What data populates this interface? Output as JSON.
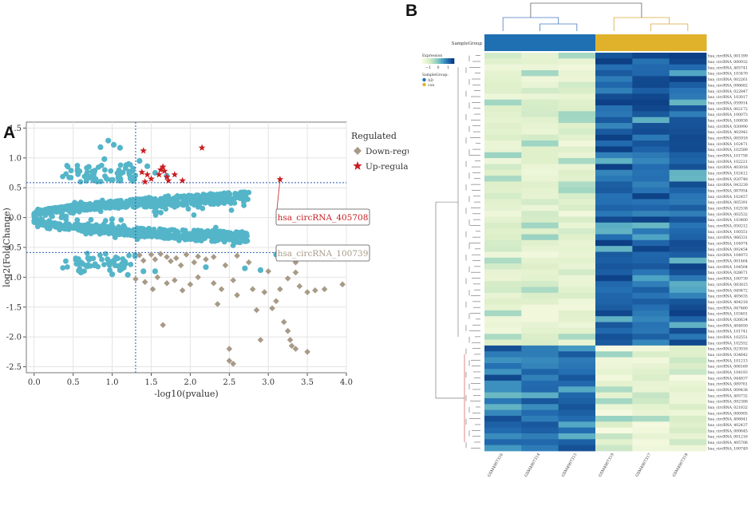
{
  "panel_a_letter": "A",
  "panel_b_letter": "B",
  "chart_data": [
    {
      "type": "scatter",
      "title": "",
      "xlabel": "-log10(pvalue)",
      "ylabel": "log2(FoldChange)",
      "xlim": [
        -0.1,
        4.0
      ],
      "ylim": [
        -2.6,
        1.6
      ],
      "x_ticks": [
        0.0,
        0.5,
        1.0,
        1.5,
        2.0,
        2.5,
        3.0,
        3.5,
        4.0
      ],
      "x_tick_labels": [
        "0.0",
        "0.5",
        "1.0",
        "1.5",
        "2.0",
        "2.5",
        "3.0",
        "3.5",
        "4.0"
      ],
      "y_ticks": [
        1.5,
        1.0,
        0.5,
        0.0,
        -0.5,
        -1.0,
        -1.5,
        -2.0,
        -2.5
      ],
      "y_tick_labels": [
        "1.5",
        "1.0",
        "0.5",
        "0.0",
        "-0.5",
        "-1.0",
        "-1.5",
        "-2.0",
        "-2.5"
      ],
      "grid": true,
      "threshold_lines": {
        "x": 1.3,
        "y_up": 0.585,
        "y_down": -0.585
      },
      "legend": {
        "title": "Regulated",
        "entries": [
          {
            "label": "Down-regulated",
            "color": "#a89a87",
            "marker": "diamond"
          },
          {
            "label": "Up-regulated",
            "color": "#c81e22",
            "marker": "star"
          }
        ]
      },
      "not_significant_color": "#54b5c9",
      "not_significant_outliers": [
        {
          "x": 0.85,
          "y": 1.18
        },
        {
          "x": 0.95,
          "y": 1.29
        },
        {
          "x": 1.02,
          "y": 1.22
        },
        {
          "x": 1.1,
          "y": 1.17
        },
        {
          "x": 0.7,
          "y": 0.85
        },
        {
          "x": 1.18,
          "y": 0.88
        },
        {
          "x": 1.22,
          "y": 0.73
        },
        {
          "x": 1.45,
          "y": 0.86
        },
        {
          "x": 1.55,
          "y": 0.75
        },
        {
          "x": 1.7,
          "y": 0.7
        },
        {
          "x": 0.9,
          "y": 0.98
        },
        {
          "x": 1.35,
          "y": 0.95
        },
        {
          "x": 0.6,
          "y": -0.92
        },
        {
          "x": 1.0,
          "y": -0.95
        },
        {
          "x": 1.1,
          "y": -0.88
        },
        {
          "x": 1.2,
          "y": -0.96
        },
        {
          "x": 1.4,
          "y": -0.9
        },
        {
          "x": 1.55,
          "y": -0.9
        },
        {
          "x": 2.2,
          "y": -0.83
        },
        {
          "x": 2.7,
          "y": -0.85
        },
        {
          "x": 2.9,
          "y": -0.88
        },
        {
          "x": 3.1,
          "y": -0.62
        }
      ],
      "series": [
        {
          "name": "Up-regulated",
          "points": [
            {
              "x": 1.4,
              "y": 1.12
            },
            {
              "x": 1.38,
              "y": 0.76
            },
            {
              "x": 1.45,
              "y": 0.72
            },
            {
              "x": 1.42,
              "y": 0.6
            },
            {
              "x": 1.5,
              "y": 0.65
            },
            {
              "x": 1.6,
              "y": 0.72
            },
            {
              "x": 1.62,
              "y": 0.8
            },
            {
              "x": 1.65,
              "y": 0.85
            },
            {
              "x": 1.67,
              "y": 0.78
            },
            {
              "x": 1.7,
              "y": 0.68
            },
            {
              "x": 1.72,
              "y": 0.62
            },
            {
              "x": 1.8,
              "y": 0.72
            },
            {
              "x": 1.9,
              "y": 0.62
            },
            {
              "x": 2.15,
              "y": 1.17
            },
            {
              "x": 3.15,
              "y": 0.64
            }
          ]
        },
        {
          "name": "Down-regulated",
          "points": [
            {
              "x": 1.35,
              "y": -0.63
            },
            {
              "x": 1.4,
              "y": -0.72
            },
            {
              "x": 1.5,
              "y": -0.62
            },
            {
              "x": 1.55,
              "y": -0.7
            },
            {
              "x": 1.62,
              "y": -0.61
            },
            {
              "x": 1.7,
              "y": -0.66
            },
            {
              "x": 1.75,
              "y": -0.73
            },
            {
              "x": 1.82,
              "y": -0.68
            },
            {
              "x": 1.88,
              "y": -0.8
            },
            {
              "x": 1.95,
              "y": -0.62
            },
            {
              "x": 2.05,
              "y": -0.75
            },
            {
              "x": 2.1,
              "y": -0.65
            },
            {
              "x": 2.2,
              "y": -0.7
            },
            {
              "x": 2.3,
              "y": -0.66
            },
            {
              "x": 2.45,
              "y": -0.8
            },
            {
              "x": 2.6,
              "y": -0.64
            },
            {
              "x": 2.75,
              "y": -0.75
            },
            {
              "x": 1.3,
              "y": -1.03
            },
            {
              "x": 1.42,
              "y": -1.08
            },
            {
              "x": 1.52,
              "y": -1.2
            },
            {
              "x": 1.58,
              "y": -1.0
            },
            {
              "x": 1.7,
              "y": -1.1
            },
            {
              "x": 1.8,
              "y": -1.05
            },
            {
              "x": 1.9,
              "y": -1.22
            },
            {
              "x": 2.0,
              "y": -1.12
            },
            {
              "x": 2.1,
              "y": -1.0
            },
            {
              "x": 2.3,
              "y": -1.1
            },
            {
              "x": 2.4,
              "y": -1.2
            },
            {
              "x": 2.55,
              "y": -1.05
            },
            {
              "x": 2.6,
              "y": -1.3
            },
            {
              "x": 2.8,
              "y": -1.2
            },
            {
              "x": 2.95,
              "y": -1.25
            },
            {
              "x": 3.05,
              "y": -1.52
            },
            {
              "x": 3.15,
              "y": -1.2
            },
            {
              "x": 3.25,
              "y": -1.02
            },
            {
              "x": 3.35,
              "y": -0.92
            },
            {
              "x": 3.4,
              "y": -1.15
            },
            {
              "x": 3.5,
              "y": -1.25
            },
            {
              "x": 3.6,
              "y": -1.22
            },
            {
              "x": 3.72,
              "y": -1.2
            },
            {
              "x": 3.95,
              "y": -1.12
            },
            {
              "x": 3.35,
              "y": -0.75
            },
            {
              "x": 1.65,
              "y": -1.8
            },
            {
              "x": 2.5,
              "y": -2.2
            },
            {
              "x": 2.5,
              "y": -2.4
            },
            {
              "x": 2.55,
              "y": -2.45
            },
            {
              "x": 2.9,
              "y": -2.05
            },
            {
              "x": 3.2,
              "y": -1.75
            },
            {
              "x": 3.25,
              "y": -1.9
            },
            {
              "x": 3.28,
              "y": -2.05
            },
            {
              "x": 3.3,
              "y": -2.15
            },
            {
              "x": 3.35,
              "y": -2.2
            },
            {
              "x": 3.5,
              "y": -2.25
            },
            {
              "x": 2.85,
              "y": -1.55
            },
            {
              "x": 2.35,
              "y": -1.45
            },
            {
              "x": 3.0,
              "y": -0.9
            },
            {
              "x": 3.1,
              "y": -1.4
            }
          ]
        }
      ],
      "annotations": [
        {
          "text": "hsa_circRNA_405708",
          "point": {
            "x": 3.15,
            "y": 0.64
          },
          "color": "#c81e22"
        },
        {
          "text": "hsa_circRNA_100739",
          "point": {
            "x": 2.95,
            "y": -0.4
          },
          "color": "#a89a87"
        }
      ]
    },
    {
      "type": "heatmap",
      "title": "",
      "column_annotation": {
        "label": "SampleGroup",
        "groups": [
          "AD",
          "AD",
          "AD",
          "con",
          "con",
          "con"
        ]
      },
      "colorbar": {
        "title": "Expression",
        "ticks": [
          "−1",
          "0",
          "1"
        ]
      },
      "sample_legend": {
        "title": "SampleGroup:",
        "entries": [
          {
            "label": "AD",
            "color": "#1f6fb3"
          },
          {
            "label": "con",
            "color": "#e0b22c"
          }
        ]
      },
      "columns": [
        "GSM4907316",
        "GSM4907314",
        "GSM4907315",
        "GSM4907319",
        "GSM4907317",
        "GSM4907318"
      ],
      "rows": [
        "hsa_circRNA_001399",
        "hsa_circRNA_000932",
        "hsa_circRNA_405741",
        "hsa_circRNA_103470",
        "hsa_circRNA_002261",
        "hsa_circRNA_096682",
        "hsa_circRNA_022847",
        "hsa_circRNA_103017",
        "hsa_circRNA_059914",
        "hsa_circRNA_002172",
        "hsa_circRNA_100073",
        "hsa_circRNA_100838",
        "hsa_circRNA_030990",
        "hsa_circRNA_402942",
        "hsa_circRNA_085918",
        "hsa_circRNA_102471",
        "hsa_circRNA_102589",
        "hsa_circRNA_101758",
        "hsa_circRNA_102221",
        "hsa_circRNA_403018",
        "hsa_circRNA_102412",
        "hsa_circRNA_020748",
        "hsa_circRNA_043239",
        "hsa_circRNA_087054",
        "hsa_circRNA_102457",
        "hsa_circRNA_005391",
        "hsa_circRNA_102538",
        "hsa_circRNA_002532",
        "hsa_circRNA_103400",
        "hsa_circRNA_050212",
        "hsa_circRNA_100551",
        "hsa_circRNA_066331",
        "hsa_circRNA_104974",
        "hsa_circRNA_092454",
        "hsa_circRNA_104973",
        "hsa_circRNA_001464",
        "hsa_circRNA_104504",
        "hsa_circRNA_028671",
        "hsa_circRNA_100739",
        "hsa_circRNA_083815",
        "hsa_circRNA_049472",
        "hsa_circRNA_405635",
        "hsa_circRNA_404218",
        "hsa_circRNA_047460",
        "hsa_circRNA_103401",
        "hsa_circRNA_026634",
        "hsa_circRNA_404850",
        "hsa_circRNA_101741",
        "hsa_circRNA_102551",
        "hsa_circRNA_102552",
        "hsa_circRNA_023016",
        "hsa_circRNA_034642",
        "hsa_circRNA_101213",
        "hsa_circRNA_006169",
        "hsa_circRNA_104193",
        "hsa_circRNA_044837",
        "hsa_circRNA_089761",
        "hsa_circRNA_009438",
        "hsa_circRNA_405732",
        "hsa_circRNA_092388",
        "hsa_circRNA_021832",
        "hsa_circRNA_000905",
        "hsa_circRNA_406841",
        "hsa_circRNA_402437",
        "hsa_circRNA_000645",
        "hsa_circRNA_001216",
        "hsa_circRNA_405708",
        "hsa_circRNA_100749"
      ],
      "up_in_con_rows": 50,
      "down_in_con_rows": 18
    }
  ]
}
